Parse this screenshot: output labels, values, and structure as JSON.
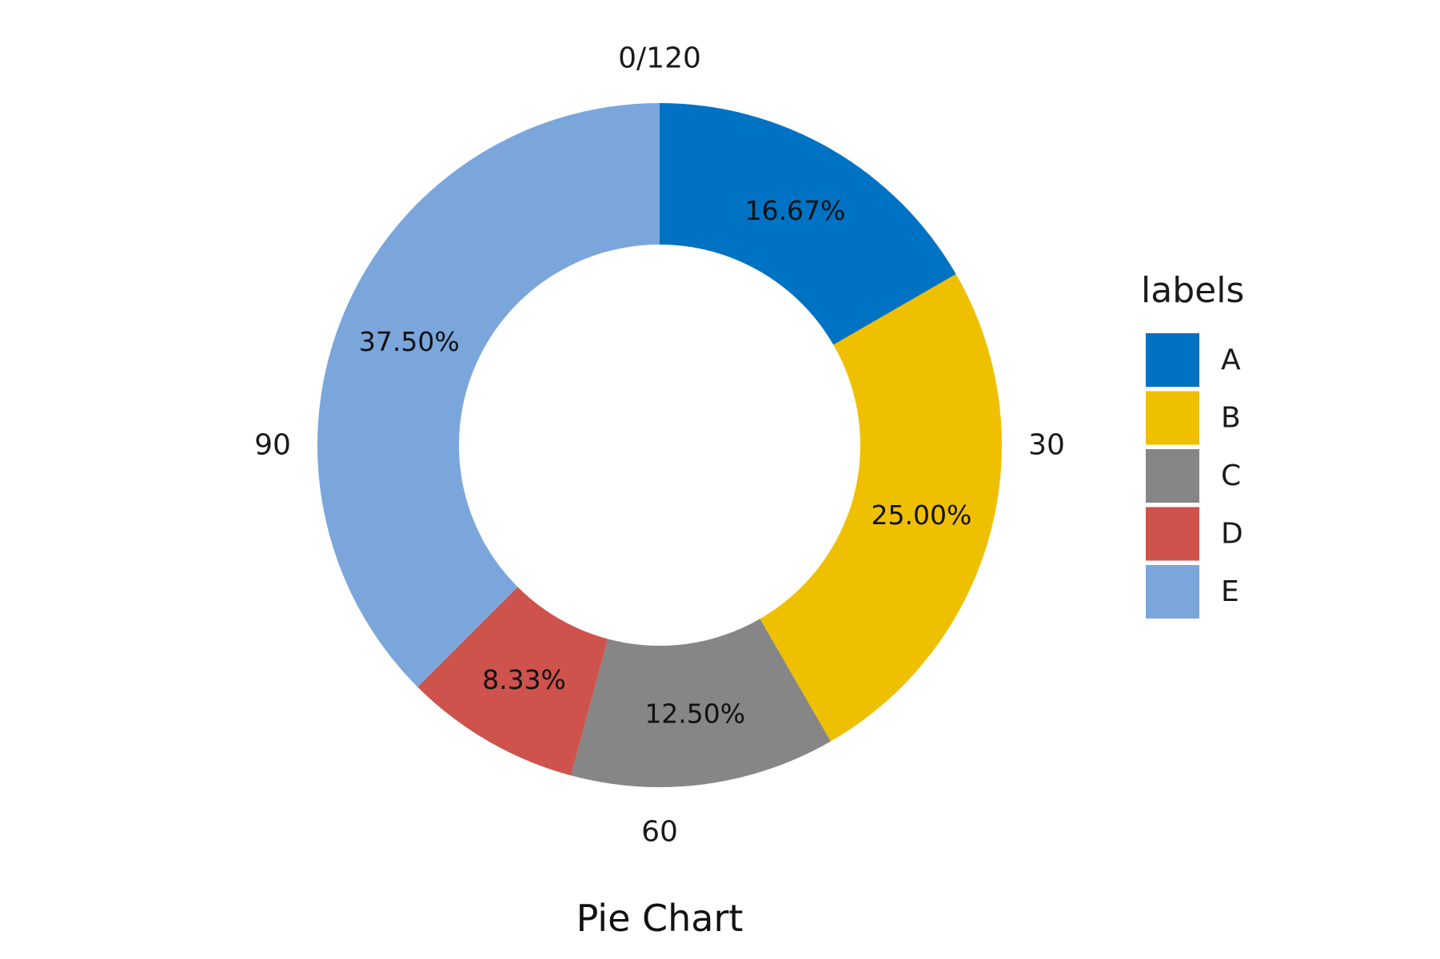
{
  "chart_data": {
    "type": "pie",
    "title": "Pie Chart",
    "categories": [
      "A",
      "B",
      "C",
      "D",
      "E"
    ],
    "values": [
      20,
      30,
      15,
      10,
      45
    ],
    "percent_labels": [
      "16.67%",
      "25.00%",
      "12.50%",
      "8.33%",
      "37.50%"
    ],
    "colors": [
      "#0072C4",
      "#EFC000",
      "#868686",
      "#CD534C",
      "#7AA6DC"
    ],
    "angle_axis": {
      "range": [
        0,
        120
      ],
      "tick_labels": [
        "0/120",
        "30",
        "60",
        "90"
      ],
      "tick_values": [
        0,
        30,
        60,
        90
      ],
      "direction": "clockwise"
    },
    "donut": true,
    "legend": {
      "title": "labels",
      "placement": "right",
      "entries": [
        "A",
        "B",
        "C",
        "D",
        "E"
      ]
    }
  }
}
